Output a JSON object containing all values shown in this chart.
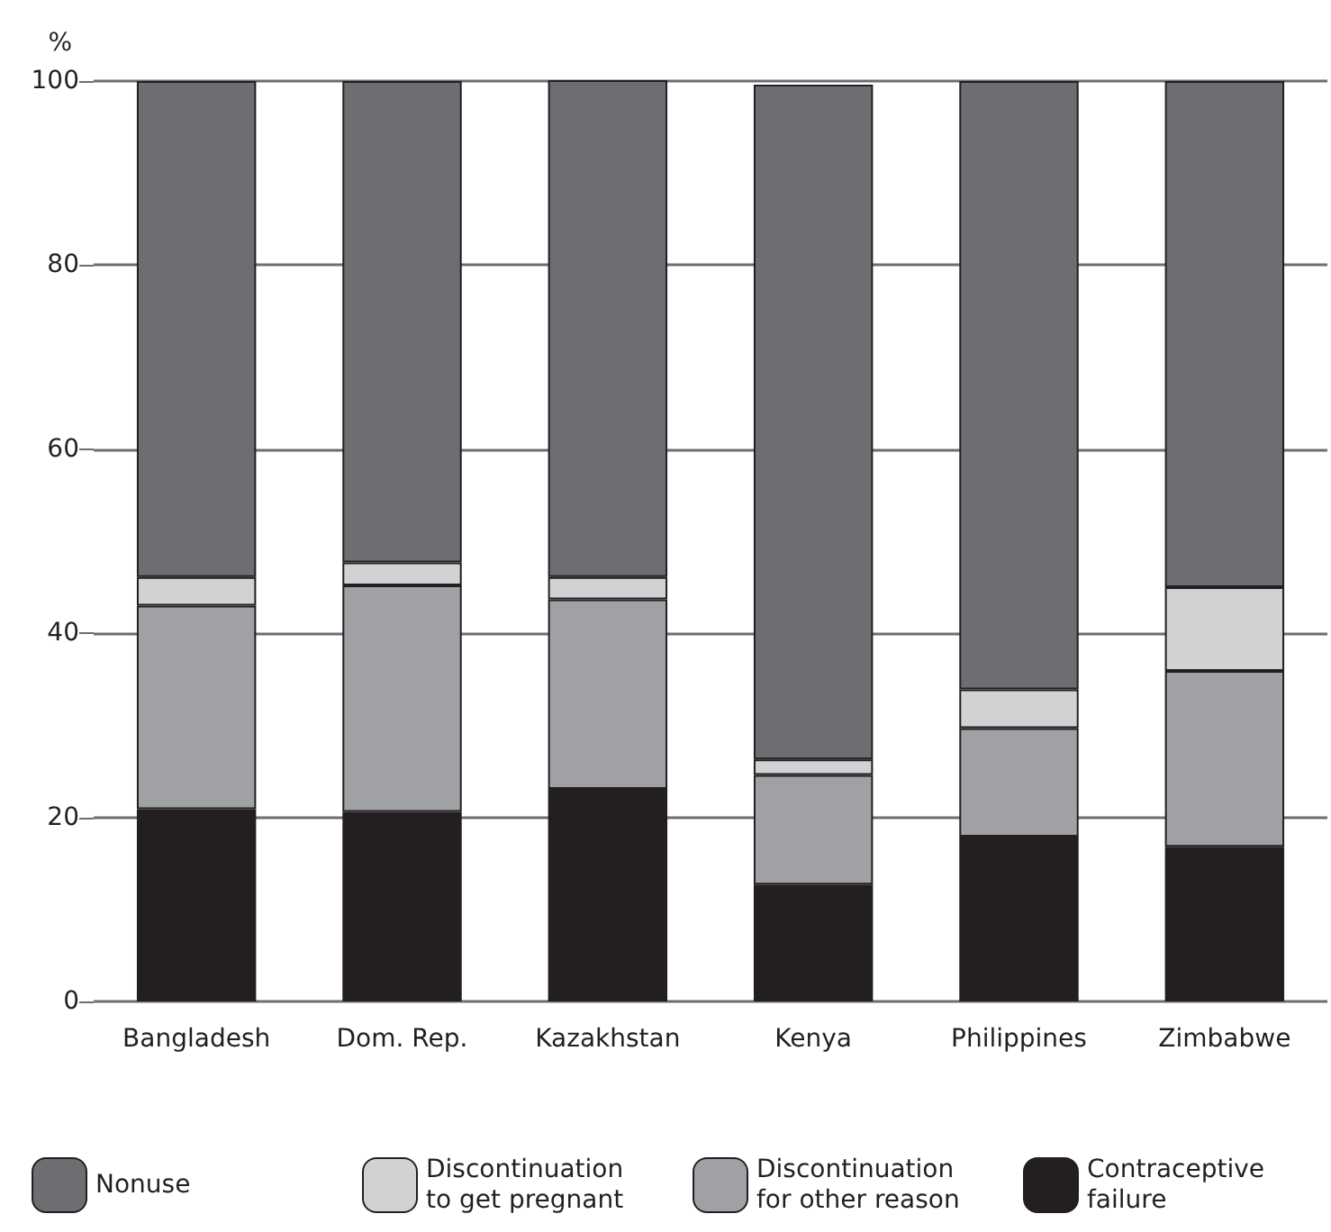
{
  "chart_data": {
    "type": "bar",
    "ylabel": "%",
    "stacked": true,
    "categories": [
      "Bangladesh",
      "Dom. Rep.",
      "Kazakhstan",
      "Kenya",
      "Philippines",
      "Zimbabwe"
    ],
    "series": [
      {
        "name": "Contraceptive failure",
        "color": "#231f20",
        "values": [
          20.9,
          20.6,
          23.1,
          12.7,
          17.9,
          16.8
        ]
      },
      {
        "name": "Discontinuation for other reason",
        "color": "#a0a1a5",
        "values": [
          22.1,
          24.6,
          20.6,
          11.9,
          11.8,
          19.1
        ]
      },
      {
        "name": "Discontinuation to get pregnant",
        "color": "#d1d2d4",
        "values": [
          3.1,
          2.5,
          2.4,
          1.7,
          4.2,
          9.1
        ]
      },
      {
        "name": "Nonuse",
        "color": "#6d6e71",
        "values": [
          53.9,
          52.3,
          54.2,
          73.3,
          66.1,
          55.0
        ]
      }
    ],
    "ylim": [
      0,
      100
    ],
    "yticks": [
      0,
      20,
      40,
      60,
      80,
      100
    ],
    "grid": "y",
    "legend": "bottom"
  }
}
